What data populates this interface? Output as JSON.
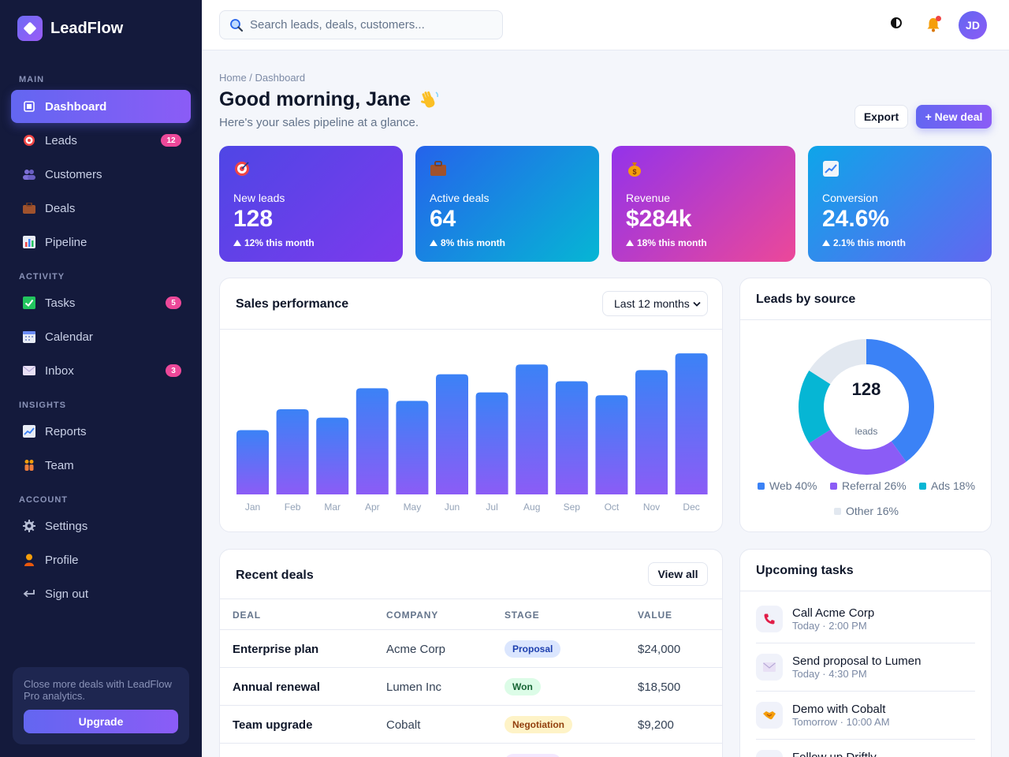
{
  "brand": {
    "name": "LeadFlow"
  },
  "sidebar": {
    "sections": {
      "main": "MAIN",
      "activity": "ACTIVITY",
      "insights": "INSIGHTS",
      "account": "ACCOUNT"
    },
    "items": [
      {
        "label": "Dashboard",
        "icon": "dashboard-icon"
      },
      {
        "label": "Leads",
        "icon": "target-icon",
        "badge": "12"
      },
      {
        "label": "Customers",
        "icon": "users-icon"
      },
      {
        "label": "Deals",
        "icon": "briefcase-icon"
      },
      {
        "label": "Pipeline",
        "icon": "bar-chart-icon"
      },
      {
        "label": "Tasks",
        "icon": "checkbox-icon",
        "badge": "5"
      },
      {
        "label": "Calendar",
        "icon": "calendar-icon"
      },
      {
        "label": "Inbox",
        "icon": "envelope-icon",
        "badge": "3"
      },
      {
        "label": "Reports",
        "icon": "trend-chart-icon"
      },
      {
        "label": "Team",
        "icon": "people-icon"
      },
      {
        "label": "Settings",
        "icon": "gear-icon"
      },
      {
        "label": "Profile",
        "icon": "person-icon"
      },
      {
        "label": "Sign out",
        "icon": "return-arrow-icon"
      }
    ],
    "promo": {
      "text": "Close more deals with LeadFlow Pro analytics.",
      "button": "Upgrade"
    }
  },
  "topbar": {
    "search_placeholder": "Search leads, deals, customers...",
    "avatar_initials": "JD"
  },
  "header": {
    "breadcrumb": "Home / Dashboard",
    "title": "Good morning, Jane",
    "subtitle": "Here's your sales pipeline at a glance.",
    "export_label": "Export",
    "new_deal_label": "+ New deal"
  },
  "stats": [
    {
      "label": "New leads",
      "value": "128",
      "trend": "12% this month",
      "icon": "target-icon"
    },
    {
      "label": "Active deals",
      "value": "64",
      "trend": "8% this month",
      "icon": "briefcase-icon"
    },
    {
      "label": "Revenue",
      "value": "$284k",
      "trend": "18% this month",
      "icon": "money-bag-icon"
    },
    {
      "label": "Conversion",
      "value": "24.6%",
      "trend": "2.1% this month",
      "icon": "trend-chart-icon"
    }
  ],
  "sales": {
    "title": "Sales performance",
    "range_selected": "Last 12 months"
  },
  "chart_data": [
    {
      "type": "bar",
      "title": "Sales performance",
      "categories": [
        "Jan",
        "Feb",
        "Mar",
        "Apr",
        "May",
        "Jun",
        "Jul",
        "Aug",
        "Sep",
        "Oct",
        "Nov",
        "Dec"
      ],
      "values": [
        46,
        61,
        55,
        76,
        67,
        86,
        73,
        93,
        81,
        71,
        89,
        101
      ],
      "ylim": [
        0,
        105
      ],
      "grid": false
    },
    {
      "type": "pie",
      "title": "Leads by source",
      "center_value": "128",
      "center_label": "leads",
      "categories": [
        "Web",
        "Referral",
        "Ads",
        "Other"
      ],
      "values": [
        40,
        26,
        18,
        16
      ],
      "legend": [
        "Web 40%",
        "Referral 26%",
        "Ads 18%",
        "Other 16%"
      ],
      "colors": [
        "#3b82f6",
        "#8b5cf6",
        "#06b6d4",
        "#e2e8f0"
      ],
      "legend_position": "bottom"
    }
  ],
  "deals": {
    "title": "Recent deals",
    "view_all": "View all",
    "columns": [
      "DEAL",
      "COMPANY",
      "STAGE",
      "VALUE"
    ],
    "rows": [
      {
        "deal": "Enterprise plan",
        "company": "Acme Corp",
        "stage": "Proposal",
        "value": "$24,000"
      },
      {
        "deal": "Annual renewal",
        "company": "Lumen Inc",
        "stage": "Won",
        "value": "$18,500"
      },
      {
        "deal": "Team upgrade",
        "company": "Cobalt",
        "stage": "Negotiation",
        "value": "$9,200"
      }
    ]
  },
  "tasks": {
    "title": "Upcoming tasks",
    "items": [
      {
        "title": "Call Acme Corp",
        "time": "Today · 2:00 PM",
        "icon": "phone-icon"
      },
      {
        "title": "Send proposal to Lumen",
        "time": "Today · 4:30 PM",
        "icon": "envelope-icon"
      },
      {
        "title": "Demo with Cobalt",
        "time": "Tomorrow · 10:00 AM",
        "icon": "handshake-icon"
      },
      {
        "title": "Follow up Driftly",
        "time": "",
        "icon": "note-icon"
      }
    ]
  },
  "colors": {
    "sidebar_bg": "#141a3c",
    "accent": "#6366f1",
    "accent2": "#8b5cf6",
    "stage_proposal": "#dbe6fe",
    "stage_won": "#dcfce7",
    "stage_negotiation": "#fef3c7"
  }
}
